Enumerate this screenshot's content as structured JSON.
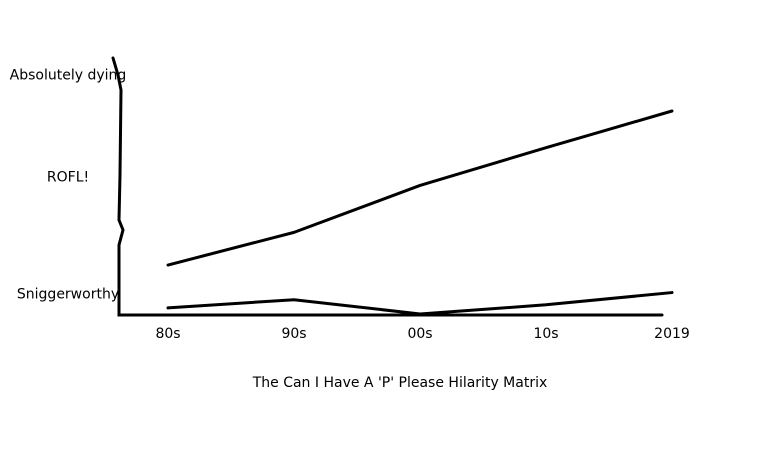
{
  "chart_data": {
    "type": "line",
    "title": "The Can I Have A 'P' Please Hilarity Matrix",
    "categories": [
      "80s",
      "90s",
      "00s",
      "10s",
      "2019"
    ],
    "series": [
      {
        "color": "#000000",
        "values": [
          0.49,
          0.81,
          1.27,
          1.64,
          2.0
        ]
      },
      {
        "color": "#000000",
        "values": [
          0.07,
          0.15,
          0.01,
          0.1,
          0.22
        ]
      }
    ],
    "ylim": [
      0,
      2.5
    ],
    "yticks": [
      {
        "value": 0.2,
        "label": "Sniggerworthy"
      },
      {
        "value": 1.35,
        "label": "ROFL!"
      },
      {
        "value": 2.35,
        "label": "Absolutely dying"
      }
    ],
    "grid": false
  }
}
